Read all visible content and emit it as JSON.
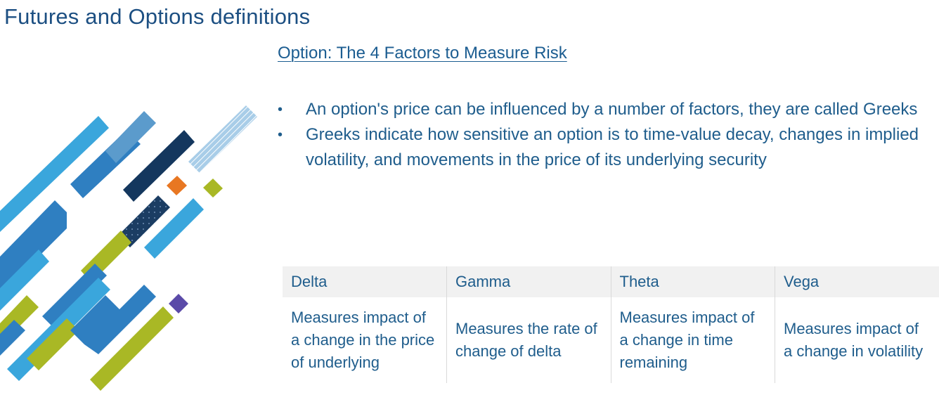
{
  "page": {
    "title": "Futures and Options definitions",
    "subtitle": "Option: The 4 Factors to Measure Risk"
  },
  "bullets": [
    "An option's price can be influenced by a number of factors, they are called Greeks",
    "Greeks indicate how sensitive an option is to time-value decay, changes in implied volatility, and movements in the price of its underlying security"
  ],
  "table": {
    "headers": [
      "Delta",
      "Gamma",
      "Theta",
      "Vega"
    ],
    "descriptions": [
      "Measures impact of a change in the price of underlying",
      "Measures the rate of change of delta",
      "Measures impact of a change in time remaining",
      "Measures impact of a change in volatility"
    ]
  },
  "colors": {
    "title": "#1c4f82",
    "text": "#1f5d8c",
    "light_blue": "#3aa6dc",
    "mid_blue": "#2f7fc1",
    "navy": "#14375e",
    "lime": "#a9b825",
    "orange": "#e87722",
    "purple": "#5a4aa8",
    "header_bg": "#f1f1f1"
  }
}
